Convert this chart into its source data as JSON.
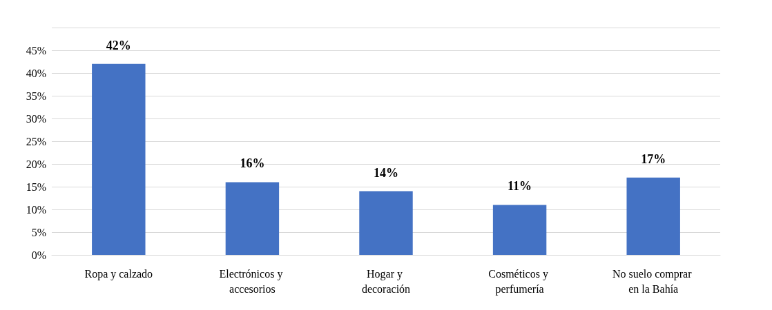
{
  "chart_data": {
    "type": "bar",
    "categories": [
      "Ropa y calzado",
      "Electrónicos y accesorios",
      "Hogar y decoración",
      "Cosméticos y perfumería",
      "No suelo comprar en la Bahía"
    ],
    "values": [
      42,
      16,
      14,
      11,
      17
    ],
    "value_labels": [
      "42%",
      "16%",
      "14%",
      "11%",
      "17%"
    ],
    "color": "#4472c4",
    "ylim": [
      0,
      50
    ],
    "yticks": [
      {
        "value": 0,
        "label": "0%"
      },
      {
        "value": 5,
        "label": "5%"
      },
      {
        "value": 10,
        "label": "10%"
      },
      {
        "value": 15,
        "label": "15%"
      },
      {
        "value": 20,
        "label": "20%"
      },
      {
        "value": 25,
        "label": "25%"
      },
      {
        "value": 30,
        "label": "30%"
      },
      {
        "value": 35,
        "label": "35%"
      },
      {
        "value": 40,
        "label": "40%"
      },
      {
        "value": 45,
        "label": "45%"
      },
      {
        "value": 50,
        "label": null
      }
    ],
    "grid": "y"
  }
}
